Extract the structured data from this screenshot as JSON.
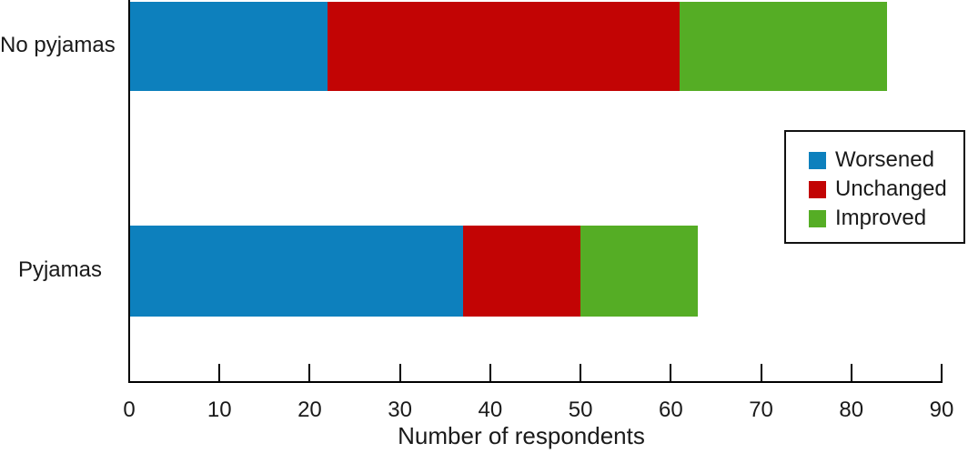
{
  "chart_data": {
    "type": "bar",
    "orientation": "horizontal",
    "stacked": true,
    "title": "",
    "xlabel": "Number of respondents",
    "ylabel": "",
    "xlim": [
      0,
      90
    ],
    "xticks": [
      0,
      10,
      20,
      30,
      40,
      50,
      60,
      70,
      80,
      90
    ],
    "grid": false,
    "legend_position": "right-inside",
    "categories": [
      "No pyjamas",
      "Pyjamas"
    ],
    "series": [
      {
        "name": "Worsened",
        "color": "#0d80bd",
        "values": [
          22,
          37
        ]
      },
      {
        "name": "Unchanged",
        "color": "#c20404",
        "values": [
          39,
          13
        ]
      },
      {
        "name": "Improved",
        "color": "#55ad25",
        "values": [
          23,
          13
        ]
      }
    ],
    "totals": [
      84,
      63
    ]
  },
  "colors": {
    "axis": "#000000",
    "text": "#1a1a1a",
    "background": "#ffffff",
    "legend_border": "#111111"
  }
}
